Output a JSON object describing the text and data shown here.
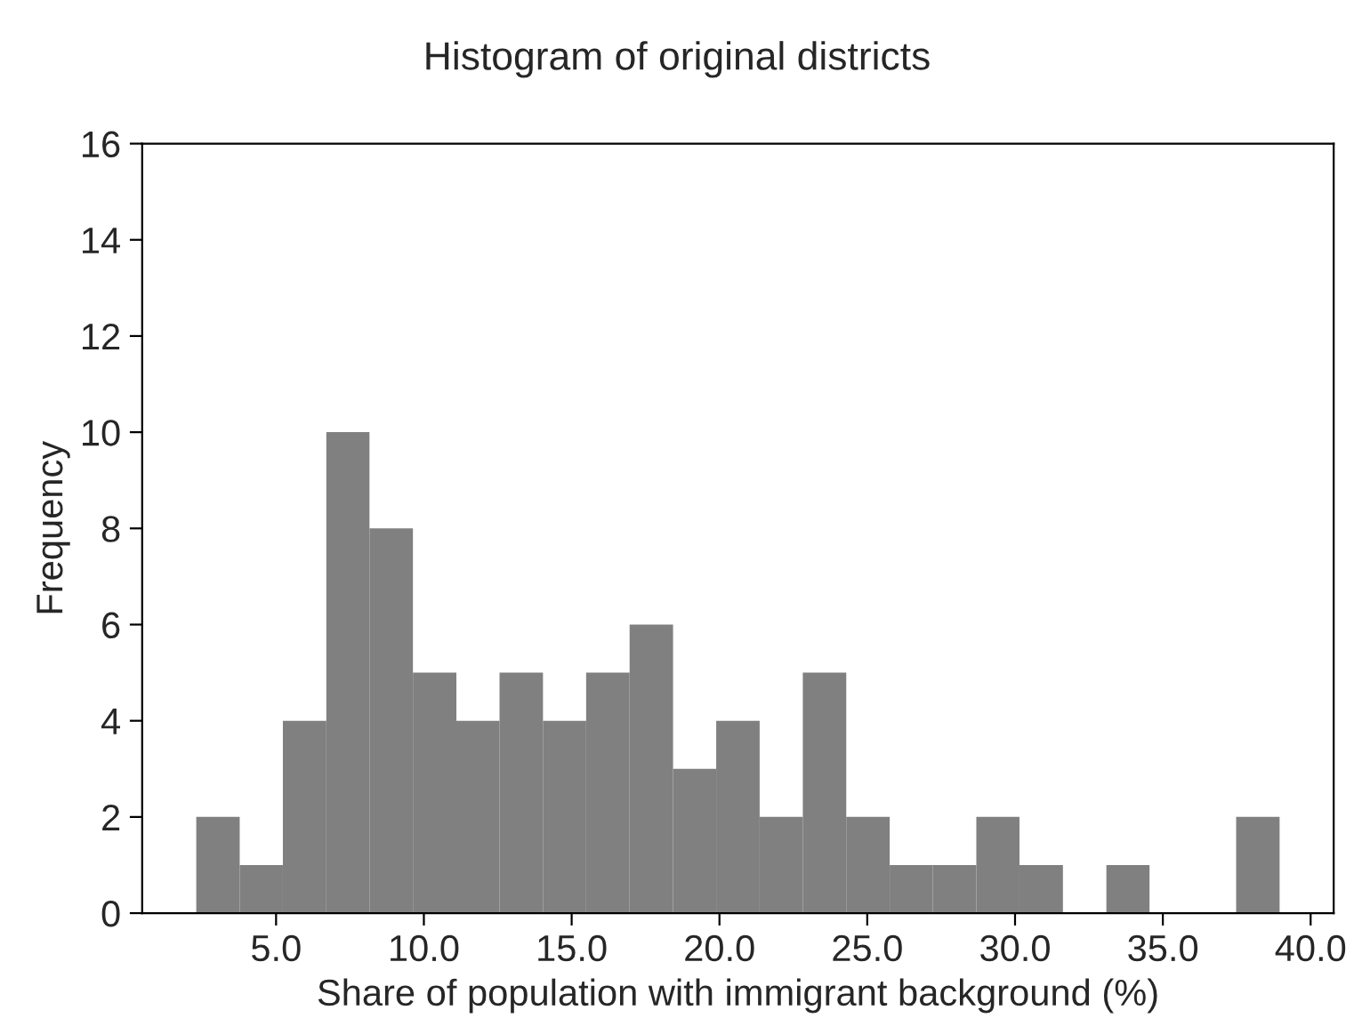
{
  "chart_data": {
    "type": "histogram",
    "title": "Histogram of original districts",
    "xlabel": "Share of population with immigrant background (%)",
    "ylabel": "Frequency",
    "bins": [
      2.3,
      3.77,
      5.23,
      6.7,
      8.16,
      9.63,
      11.1,
      12.56,
      14.03,
      15.49,
      16.96,
      18.43,
      19.89,
      21.36,
      22.82,
      24.29,
      25.76,
      27.22,
      28.69,
      30.15,
      31.62,
      33.09,
      34.55,
      36.02,
      37.48,
      38.95
    ],
    "values": [
      2,
      1,
      4,
      10,
      8,
      5,
      4,
      5,
      4,
      5,
      6,
      3,
      4,
      2,
      5,
      2,
      1,
      1,
      2,
      1,
      0,
      1,
      0,
      0,
      2
    ],
    "color": "#808080",
    "xlim": [
      0.47,
      40.78
    ],
    "xticks": [
      {
        "value": 5,
        "label": "5.0"
      },
      {
        "value": 10,
        "label": "10.0"
      },
      {
        "value": 15,
        "label": "15.0"
      },
      {
        "value": 20,
        "label": "20.0"
      },
      {
        "value": 25,
        "label": "25.0"
      },
      {
        "value": 30,
        "label": "30.0"
      },
      {
        "value": 35,
        "label": "35.0"
      },
      {
        "value": 40,
        "label": "40.0"
      }
    ],
    "ylim": [
      0,
      16
    ],
    "yticks": [
      0,
      2,
      4,
      6,
      8,
      10,
      12,
      14,
      16
    ],
    "grid": false,
    "legend": false
  }
}
